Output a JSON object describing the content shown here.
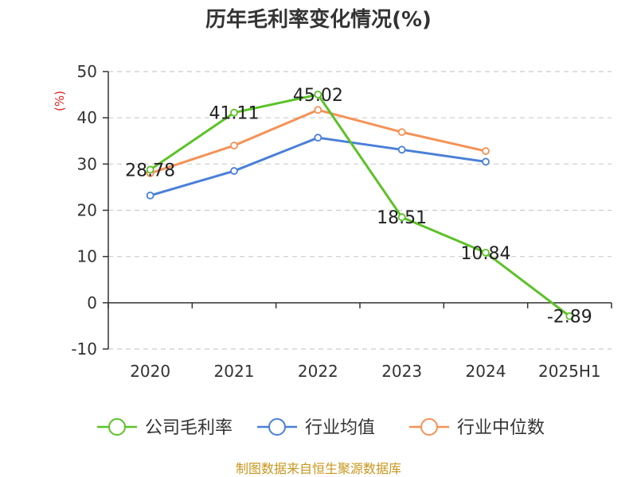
{
  "chart_data": {
    "type": "line",
    "title": "历年毛利率变化情况(%)",
    "ylabel": "(%)",
    "xlabel": "",
    "categories": [
      "2020",
      "2021",
      "2022",
      "2023",
      "2024",
      "2025H1"
    ],
    "ylim": [
      -10,
      50
    ],
    "yticks": [
      50,
      40,
      30,
      20,
      10,
      0,
      -10
    ],
    "grid": true,
    "legend_position": "bottom",
    "series": [
      {
        "name": "公司毛利率",
        "color": "#5cc228",
        "values": [
          28.78,
          41.11,
          45.02,
          18.51,
          10.84,
          -2.89
        ],
        "labels": [
          "28.78",
          "41.11",
          "45.02",
          "18.51",
          "10.84",
          "-2.89"
        ]
      },
      {
        "name": "行业均值",
        "color": "#4a7fd8",
        "values": [
          23.2,
          28.5,
          35.7,
          33.1,
          30.5,
          null
        ]
      },
      {
        "name": "行业中位数",
        "color": "#f59257",
        "values": [
          28.0,
          34.0,
          41.7,
          36.9,
          32.8,
          null
        ]
      }
    ]
  },
  "footer": {
    "source": "制图数据来自恒生聚源数据库"
  }
}
